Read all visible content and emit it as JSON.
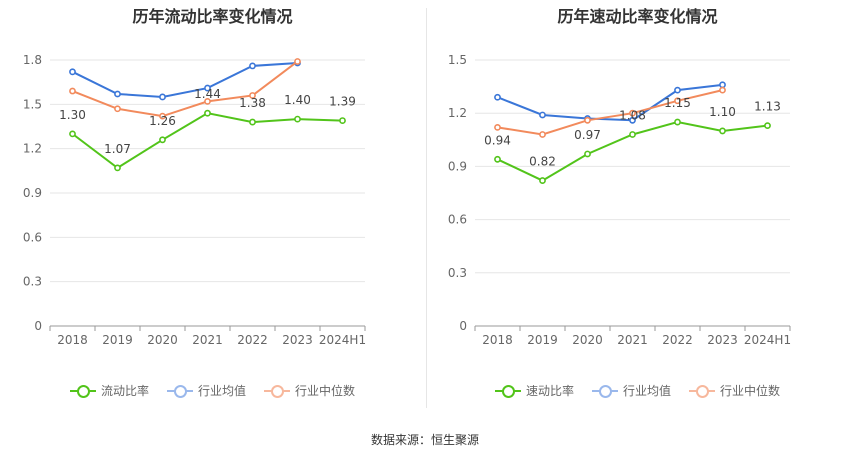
{
  "source_label": "数据来源：恒生聚源",
  "chart_data": [
    {
      "type": "line",
      "title": "历年流动比率变化情况",
      "categories": [
        "2018",
        "2019",
        "2020",
        "2021",
        "2022",
        "2023",
        "2024H1"
      ],
      "ylim": [
        0,
        1.8
      ],
      "yticks": [
        0,
        0.3,
        0.6,
        0.9,
        1.2,
        1.5,
        1.8
      ],
      "ytick_labels": [
        "0",
        "0.3",
        "0.6",
        "0.9",
        "1.2",
        "1.5",
        "1.8"
      ],
      "grid": true,
      "legend_position": "bottom",
      "series": [
        {
          "name": "流动比率",
          "color": "#52c41a",
          "values": [
            1.3,
            1.07,
            1.26,
            1.44,
            1.38,
            1.4,
            1.39
          ],
          "labels": [
            "1.30",
            "1.07",
            "1.26",
            "1.44",
            "1.38",
            "1.40",
            "1.39"
          ]
        },
        {
          "name": "行业均值",
          "color": "#3a76d8",
          "values": [
            1.72,
            1.57,
            1.55,
            1.61,
            1.76,
            1.78,
            null
          ]
        },
        {
          "name": "行业中位数",
          "color": "#f28a5c",
          "values": [
            1.59,
            1.47,
            1.42,
            1.52,
            1.56,
            1.79,
            null
          ]
        }
      ]
    },
    {
      "type": "line",
      "title": "历年速动比率变化情况",
      "categories": [
        "2018",
        "2019",
        "2020",
        "2021",
        "2022",
        "2023",
        "2024H1"
      ],
      "ylim": [
        0,
        1.5
      ],
      "yticks": [
        0,
        0.3,
        0.6,
        0.9,
        1.2,
        1.5
      ],
      "ytick_labels": [
        "0",
        "0.3",
        "0.6",
        "0.9",
        "1.2",
        "1.5"
      ],
      "grid": true,
      "legend_position": "bottom",
      "series": [
        {
          "name": "速动比率",
          "color": "#52c41a",
          "values": [
            0.94,
            0.82,
            0.97,
            1.08,
            1.15,
            1.1,
            1.13
          ],
          "labels": [
            "0.94",
            "0.82",
            "0.97",
            "1.08",
            "1.15",
            "1.10",
            "1.13"
          ]
        },
        {
          "name": "行业均值",
          "color": "#3a76d8",
          "values": [
            1.29,
            1.19,
            1.17,
            1.16,
            1.33,
            1.36,
            null
          ]
        },
        {
          "name": "行业中位数",
          "color": "#f28a5c",
          "values": [
            1.12,
            1.08,
            1.16,
            1.2,
            1.27,
            1.33,
            null
          ]
        }
      ]
    }
  ]
}
